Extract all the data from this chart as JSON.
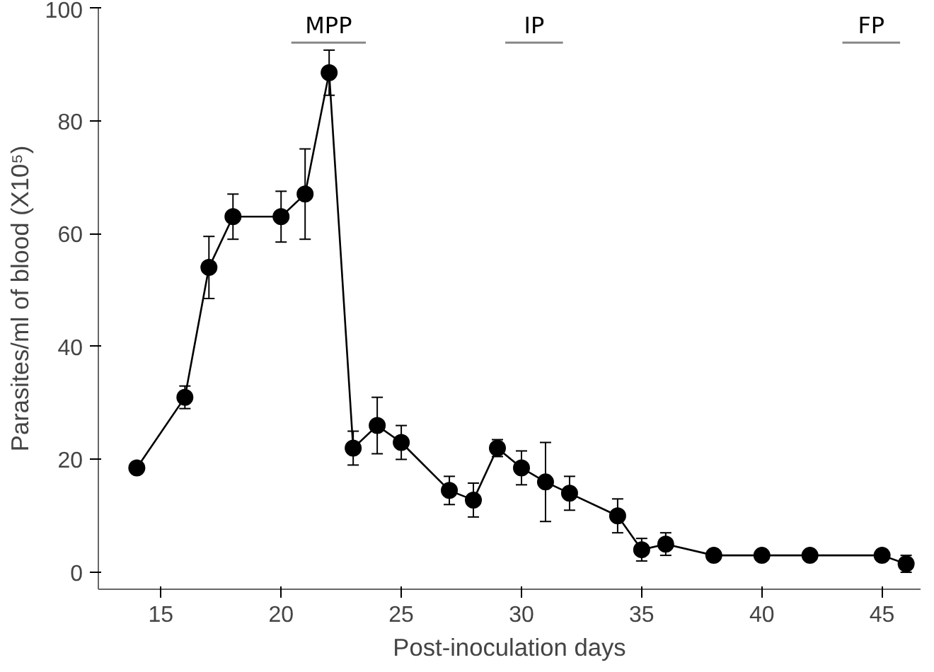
{
  "chart_data": {
    "type": "line",
    "xlabel": "Post-inoculation days",
    "ylabel": "Parasites/ml of blood (X10⁵)",
    "x": [
      14,
      16,
      17,
      18,
      20,
      21,
      22,
      23,
      24,
      25,
      27,
      28,
      29,
      30,
      31,
      32,
      34,
      35,
      36,
      38,
      40,
      42,
      45,
      46
    ],
    "series": [
      {
        "color": "#000000",
        "values": [
          18.5,
          31,
          54,
          63,
          63,
          67,
          88.5,
          22,
          26,
          23,
          14.5,
          12.8,
          22,
          18.5,
          16,
          14,
          10,
          4,
          5,
          3,
          3,
          3,
          3,
          1.5
        ],
        "errors": [
          1,
          2,
          5.5,
          4,
          4.5,
          8,
          4,
          3,
          5,
          3,
          2.5,
          3,
          1.5,
          3,
          7,
          3,
          3,
          2,
          2,
          null,
          null,
          null,
          1,
          1.5
        ]
      }
    ],
    "marker": "circle",
    "line_style": "solid",
    "grid": false,
    "xlim": [
      12.4,
      46.6
    ],
    "ylim": [
      -3,
      100
    ],
    "xticks": [
      15,
      20,
      25,
      30,
      35,
      40,
      45
    ],
    "yticks": [
      0,
      20,
      40,
      60,
      80,
      100
    ],
    "annotations": [
      "MPP",
      "IP",
      "FP"
    ]
  }
}
